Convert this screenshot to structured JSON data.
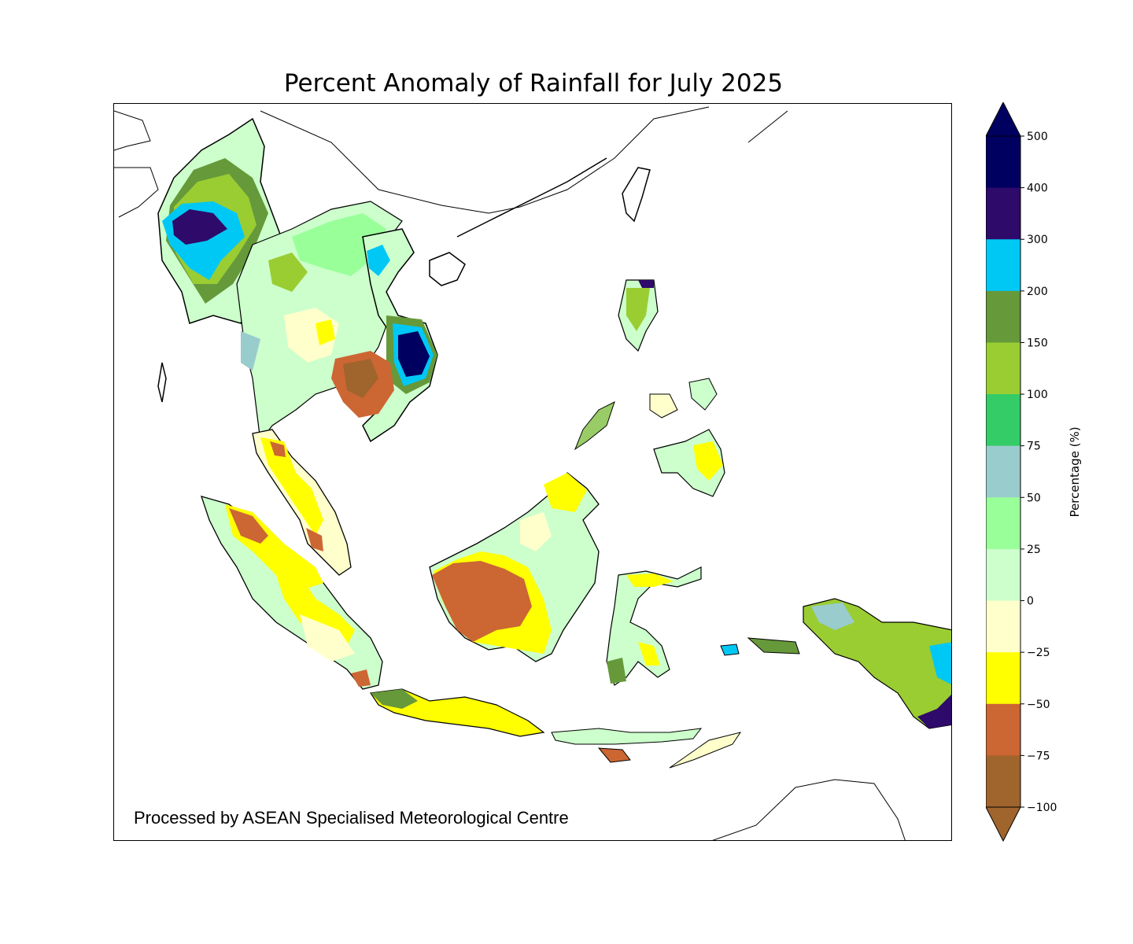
{
  "title": "Percent Anomaly of Rainfall for July 2025",
  "credit": "Processed by ASEAN Specialised Meteorological Centre",
  "colorbar": {
    "label": "Percentage (%)",
    "ticks": [
      "500",
      "400",
      "300",
      "200",
      "150",
      "100",
      "75",
      "50",
      "25",
      "0",
      "−25",
      "−50",
      "−75",
      "−100"
    ],
    "bins": [
      {
        "range": "400 to 500",
        "color": "#000060"
      },
      {
        "range": "300 to 400",
        "color": "#2e0a6a"
      },
      {
        "range": "200 to 300",
        "color": "#00c8f5"
      },
      {
        "range": "150 to 200",
        "color": "#66993a"
      },
      {
        "range": "100 to 150",
        "color": "#9acd32"
      },
      {
        "range": "75 to 100",
        "color": "#33cc66"
      },
      {
        "range": "50 to 75",
        "color": "#99cccc"
      },
      {
        "range": "25 to 50",
        "color": "#99ff99"
      },
      {
        "range": "0 to 25",
        "color": "#ccffcc"
      },
      {
        "range": "-25 to 0",
        "color": "#ffffcc"
      },
      {
        "range": "-50 to -25",
        "color": "#ffff00"
      },
      {
        "range": "-75 to -50",
        "color": "#cc6633"
      },
      {
        "range": "-100 to -75",
        "color": "#a0642d"
      }
    ],
    "over_color": "#000060",
    "under_color": "#a0642d"
  }
}
